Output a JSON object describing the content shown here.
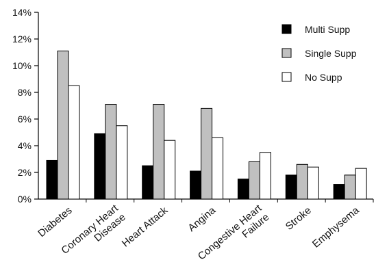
{
  "chart_data": {
    "type": "bar",
    "title": "",
    "xlabel": "",
    "ylabel": "",
    "ylim": [
      0,
      14
    ],
    "y_tick_labels": [
      "0%",
      "2%",
      "4%",
      "6%",
      "8%",
      "10%",
      "12%",
      "14%"
    ],
    "y_ticks": [
      0,
      2,
      4,
      6,
      8,
      10,
      12,
      14
    ],
    "grid": false,
    "legend_position": "top-right",
    "categories": [
      [
        "Diabetes"
      ],
      [
        "Coronary Heart",
        "Disease"
      ],
      [
        "Heart Attack"
      ],
      [
        "Angina"
      ],
      [
        "Congestive Heart",
        "Failure"
      ],
      [
        "Stroke"
      ],
      [
        "Emphysema"
      ]
    ],
    "series": [
      {
        "name": "Multi Supp",
        "color": "#000000",
        "values": [
          2.9,
          4.9,
          2.5,
          2.1,
          1.5,
          1.8,
          1.1
        ]
      },
      {
        "name": "Single Supp",
        "color": "#c0c0c0",
        "values": [
          11.1,
          7.1,
          7.1,
          6.8,
          2.8,
          2.6,
          1.8
        ]
      },
      {
        "name": "No Supp",
        "color": "#ffffff",
        "values": [
          8.5,
          5.5,
          4.4,
          4.6,
          3.5,
          2.4,
          2.3
        ]
      }
    ]
  }
}
